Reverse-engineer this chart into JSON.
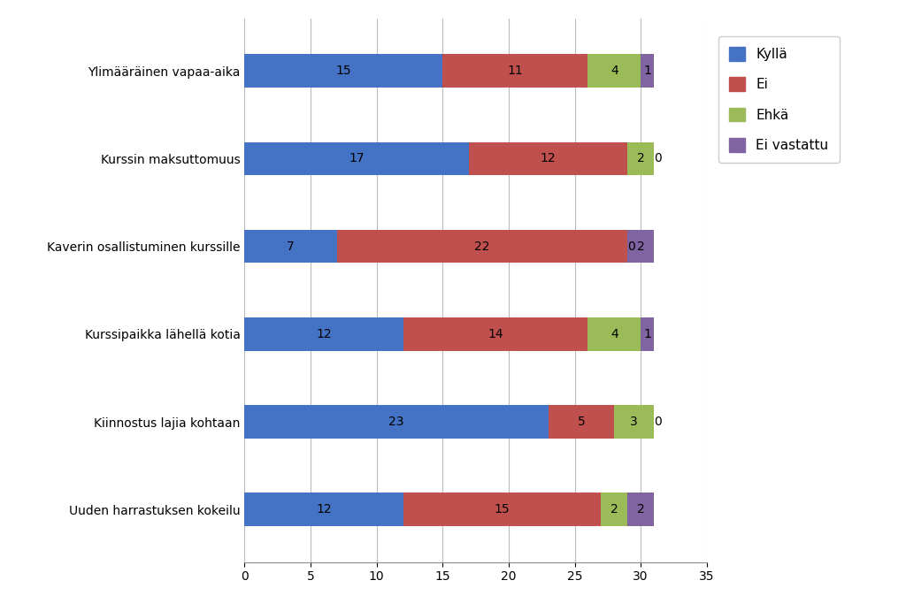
{
  "categories": [
    "Uuden harrastuksen kokeilu",
    "Kiinnostus lajia kohtaan",
    "Kurssipaikka lähellä kotia",
    "Kaverin osallistuminen kurssille",
    "Kurssin maksuttomuus",
    "Ylimääräinen vapaa-aika"
  ],
  "series": [
    {
      "label": "Kyllä",
      "color": "#4472C4",
      "values": [
        12,
        23,
        12,
        7,
        17,
        15
      ]
    },
    {
      "label": "Ei",
      "color": "#C0504D",
      "values": [
        15,
        5,
        14,
        22,
        12,
        11
      ]
    },
    {
      "label": "Ehkä",
      "color": "#9BBB59",
      "values": [
        2,
        3,
        4,
        0,
        2,
        4
      ]
    },
    {
      "label": "Ei vastattu",
      "color": "#8064A2",
      "values": [
        2,
        0,
        1,
        2,
        0,
        1
      ]
    }
  ],
  "xlim": [
    0,
    35
  ],
  "xticks": [
    0,
    5,
    10,
    15,
    20,
    25,
    30,
    35
  ],
  "background_color": "#FFFFFF",
  "bar_height": 0.38,
  "grid_color": "#BBBBBB",
  "label_fontsize": 10,
  "tick_fontsize": 10,
  "legend_fontsize": 11
}
